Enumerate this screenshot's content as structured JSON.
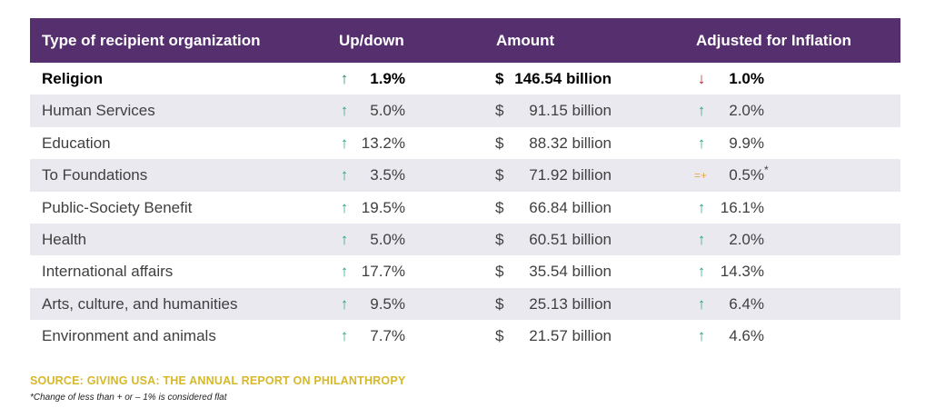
{
  "chart_data": {
    "type": "table",
    "columns": [
      "Type of recipient organization",
      "Up/down",
      "Amount",
      "Adjusted for Inflation"
    ],
    "rows": [
      {
        "type": "Religion",
        "updown_dir": "up",
        "updown": "1.9%",
        "currency": "$",
        "amount": "146.54 billion",
        "adj_dir": "down",
        "adj": "1.0%",
        "adj_note": ""
      },
      {
        "type": "Human Services",
        "updown_dir": "up",
        "updown": "5.0%",
        "currency": "$",
        "amount": "91.15 billion",
        "adj_dir": "up",
        "adj": "2.0%",
        "adj_note": ""
      },
      {
        "type": "Education",
        "updown_dir": "up",
        "updown": "13.2%",
        "currency": "$",
        "amount": "88.32 billion",
        "adj_dir": "up",
        "adj": "9.9%",
        "adj_note": ""
      },
      {
        "type": "To Foundations",
        "updown_dir": "up",
        "updown": "3.5%",
        "currency": "$",
        "amount": "71.92 billion",
        "adj_dir": "flat",
        "adj": "0.5%",
        "adj_note": "*"
      },
      {
        "type": "Public-Society Benefit",
        "updown_dir": "up",
        "updown": "19.5%",
        "currency": "$",
        "amount": "66.84 billion",
        "adj_dir": "up",
        "adj": "16.1%",
        "adj_note": ""
      },
      {
        "type": "Health",
        "updown_dir": "up",
        "updown": "5.0%",
        "currency": "$",
        "amount": "60.51 billion",
        "adj_dir": "up",
        "adj": "2.0%",
        "adj_note": ""
      },
      {
        "type": "International affairs",
        "updown_dir": "up",
        "updown": "17.7%",
        "currency": "$",
        "amount": "35.54 billion",
        "adj_dir": "up",
        "adj": "14.3%",
        "adj_note": ""
      },
      {
        "type": "Arts, culture, and humanities",
        "updown_dir": "up",
        "updown": "9.5%",
        "currency": "$",
        "amount": "25.13 billion",
        "adj_dir": "up",
        "adj": "6.4%",
        "adj_note": ""
      },
      {
        "type": "Environment and animals",
        "updown_dir": "up",
        "updown": "7.7%",
        "currency": "$",
        "amount": "21.57 billion",
        "adj_dir": "up",
        "adj": "4.6%",
        "adj_note": ""
      }
    ],
    "source": "SOURCE: GIVING USA: THE ANNUAL REPORT ON PHILANTHROPY",
    "footnote": "*Change of less than + or – 1% is considered flat"
  },
  "symbols": {
    "up": "↑",
    "down": "↓",
    "flat": "=+"
  },
  "colors": {
    "header_bg": "#562f6e",
    "header_text": "#ffffff",
    "row_shade": "#eae9f0",
    "up_arrow": "#1e8a6a",
    "down_arrow": "#c0282d",
    "flat_marker": "#e8a44c",
    "source_text": "#d7b82a"
  }
}
